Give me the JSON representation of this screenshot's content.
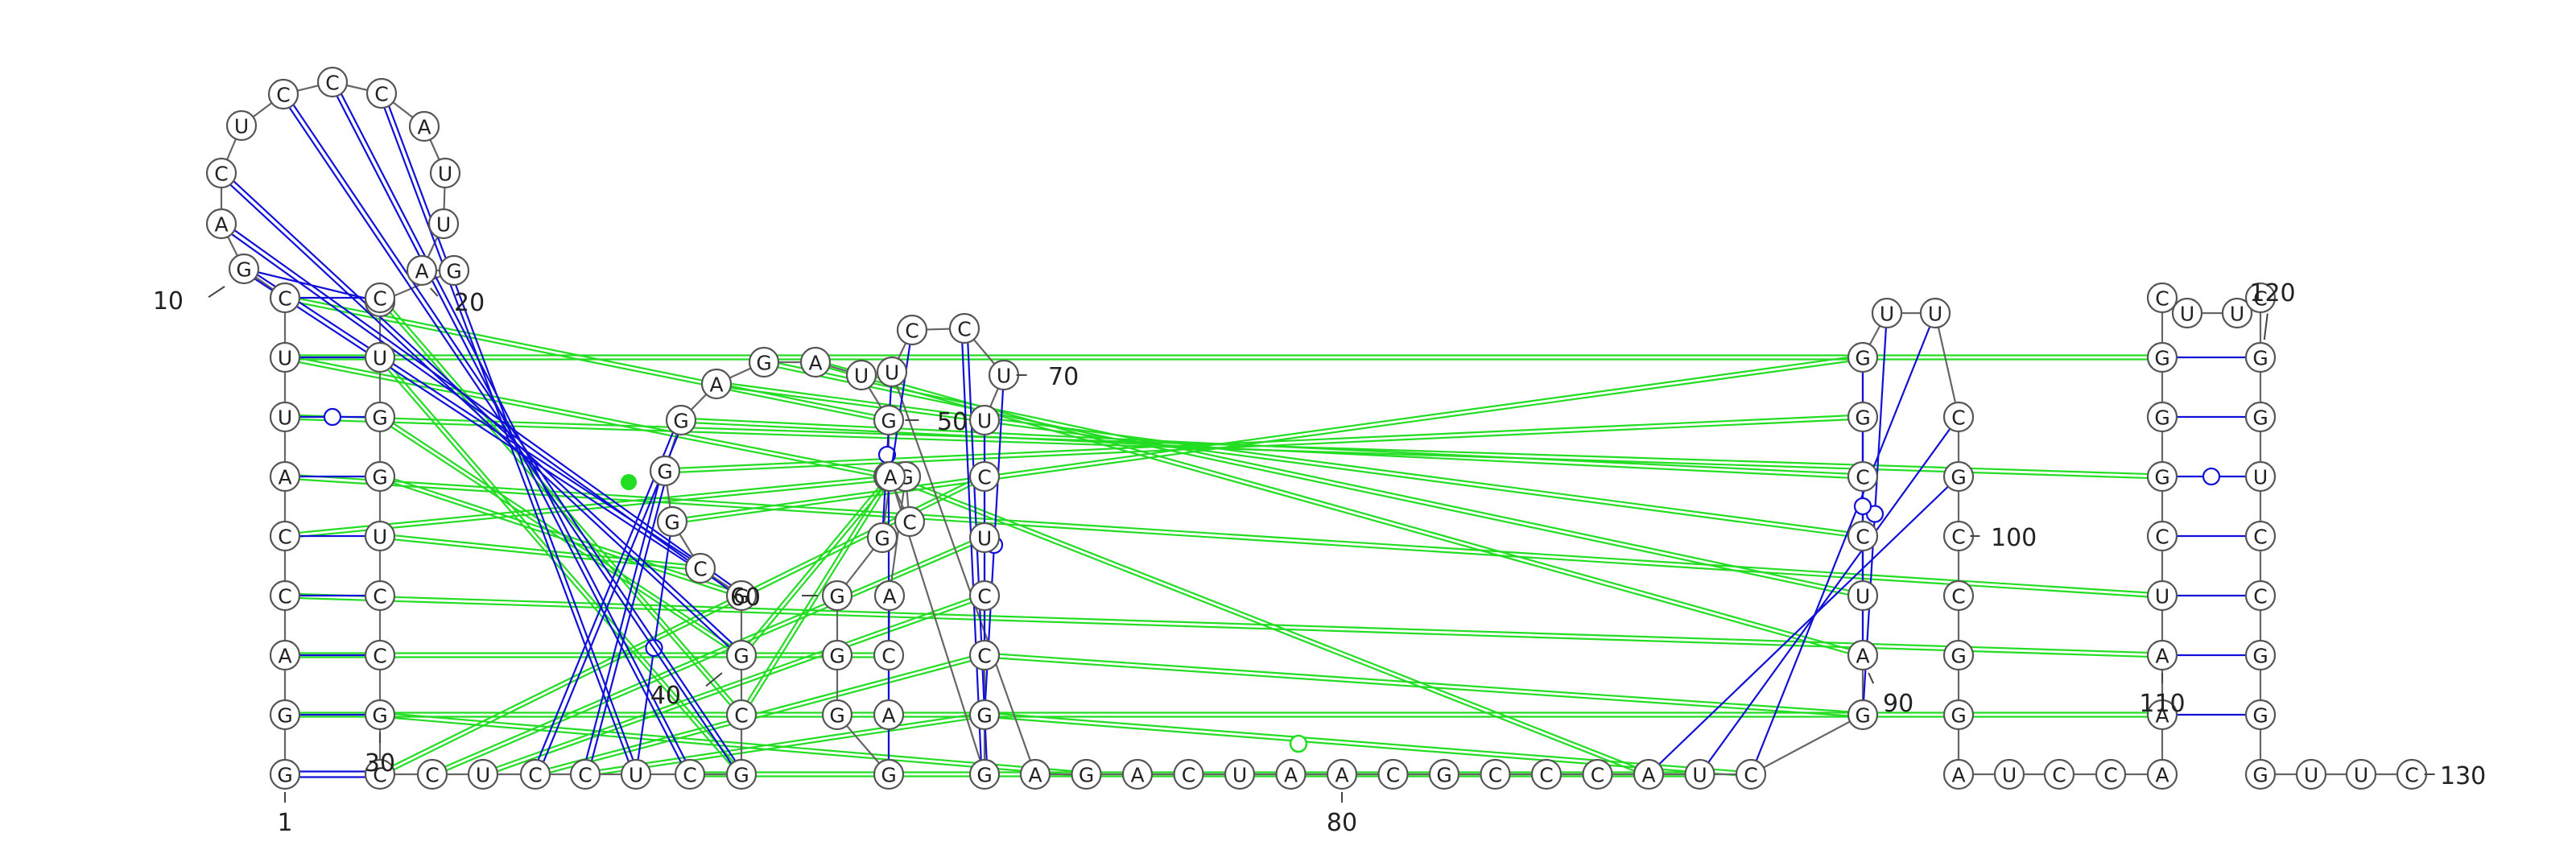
{
  "nucleotides": [
    {
      "n": 1,
      "b": "G"
    },
    {
      "n": 2,
      "b": "G"
    },
    {
      "n": 3,
      "b": "A"
    },
    {
      "n": 4,
      "b": "C"
    },
    {
      "n": 5,
      "b": "C"
    },
    {
      "n": 6,
      "b": "A"
    },
    {
      "n": 7,
      "b": "U"
    },
    {
      "n": 8,
      "b": "U"
    },
    {
      "n": 9,
      "b": "C"
    },
    {
      "n": 10,
      "b": "G"
    },
    {
      "n": 11,
      "b": "A"
    },
    {
      "n": 12,
      "b": "C"
    },
    {
      "n": 13,
      "b": "U"
    },
    {
      "n": 14,
      "b": "C"
    },
    {
      "n": 15,
      "b": "C"
    },
    {
      "n": 16,
      "b": "C"
    },
    {
      "n": 17,
      "b": "A"
    },
    {
      "n": 18,
      "b": "U"
    },
    {
      "n": 19,
      "b": "U"
    },
    {
      "n": 20,
      "b": "A"
    },
    {
      "n": 21,
      "b": "G"
    },
    {
      "n": 22,
      "b": "A"
    },
    {
      "n": 23,
      "b": "C"
    },
    {
      "n": 24,
      "b": "U"
    },
    {
      "n": 25,
      "b": "G"
    },
    {
      "n": 26,
      "b": "G"
    },
    {
      "n": 27,
      "b": "U"
    },
    {
      "n": 28,
      "b": "C"
    },
    {
      "n": 29,
      "b": "C"
    },
    {
      "n": 30,
      "b": "G"
    },
    {
      "n": 31,
      "b": "C"
    },
    {
      "n": 32,
      "b": "C"
    },
    {
      "n": 33,
      "b": "U"
    },
    {
      "n": 34,
      "b": "C"
    },
    {
      "n": 35,
      "b": "C"
    },
    {
      "n": 36,
      "b": "U"
    },
    {
      "n": 37,
      "b": "C"
    },
    {
      "n": 38,
      "b": "G"
    },
    {
      "n": 39,
      "b": "C"
    },
    {
      "n": 40,
      "b": "G"
    },
    {
      "n": 41,
      "b": "G"
    },
    {
      "n": 42,
      "b": "C"
    },
    {
      "n": 43,
      "b": "G"
    },
    {
      "n": 44,
      "b": "G"
    },
    {
      "n": 45,
      "b": "G"
    },
    {
      "n": 46,
      "b": "A"
    },
    {
      "n": 47,
      "b": "G"
    },
    {
      "n": 48,
      "b": "A"
    },
    {
      "n": 49,
      "b": "U"
    },
    {
      "n": 50,
      "b": "G"
    },
    {
      "n": 51,
      "b": "G"
    },
    {
      "n": 52,
      "b": "C"
    },
    {
      "n": 53,
      "b": "G"
    },
    {
      "n": 54,
      "b": "A"
    },
    {
      "n": 55,
      "b": "C"
    },
    {
      "n": 56,
      "b": "A"
    },
    {
      "n": 57,
      "b": "G"
    },
    {
      "n": 58,
      "b": "G"
    },
    {
      "n": 59,
      "b": "G"
    },
    {
      "n": 60,
      "b": "G"
    },
    {
      "n": 61,
      "b": "G"
    },
    {
      "n": 62,
      "b": "A"
    },
    {
      "n": 63,
      "b": "G"
    },
    {
      "n": 64,
      "b": "G"
    },
    {
      "n": 65,
      "b": "C"
    },
    {
      "n": 66,
      "b": "C"
    },
    {
      "n": 67,
      "b": "U"
    },
    {
      "n": 68,
      "b": "C"
    },
    {
      "n": 69,
      "b": "U"
    },
    {
      "n": 70,
      "b": "U"
    },
    {
      "n": 71,
      "b": "C"
    },
    {
      "n": 72,
      "b": "C"
    },
    {
      "n": 73,
      "b": "U"
    },
    {
      "n": 74,
      "b": "A"
    },
    {
      "n": 75,
      "b": "G"
    },
    {
      "n": 76,
      "b": "A"
    },
    {
      "n": 77,
      "b": "C"
    },
    {
      "n": 78,
      "b": "U"
    },
    {
      "n": 79,
      "b": "A"
    },
    {
      "n": 80,
      "b": "A"
    },
    {
      "n": 81,
      "b": "C"
    },
    {
      "n": 82,
      "b": "G"
    },
    {
      "n": 83,
      "b": "C"
    },
    {
      "n": 84,
      "b": "C"
    },
    {
      "n": 85,
      "b": "C"
    },
    {
      "n": 86,
      "b": "A"
    },
    {
      "n": 87,
      "b": "U"
    },
    {
      "n": 88,
      "b": "C"
    },
    {
      "n": 89,
      "b": "G"
    },
    {
      "n": 90,
      "b": "A"
    },
    {
      "n": 91,
      "b": "U"
    },
    {
      "n": 92,
      "b": "C"
    },
    {
      "n": 93,
      "b": "C"
    },
    {
      "n": 94,
      "b": "G"
    },
    {
      "n": 95,
      "b": "G"
    },
    {
      "n": 96,
      "b": "U"
    },
    {
      "n": 97,
      "b": "U"
    },
    {
      "n": 98,
      "b": "C"
    },
    {
      "n": 99,
      "b": "G"
    },
    {
      "n": 100,
      "b": "C"
    },
    {
      "n": 101,
      "b": "C"
    },
    {
      "n": 102,
      "b": "G"
    },
    {
      "n": 103,
      "b": "G"
    },
    {
      "n": 104,
      "b": "A"
    },
    {
      "n": 105,
      "b": "U"
    },
    {
      "n": 106,
      "b": "C"
    },
    {
      "n": 107,
      "b": "C"
    },
    {
      "n": 108,
      "b": "A"
    },
    {
      "n": 109,
      "b": "A"
    },
    {
      "n": 110,
      "b": "A"
    },
    {
      "n": 111,
      "b": "U"
    },
    {
      "n": 112,
      "b": "C"
    },
    {
      "n": 113,
      "b": "G"
    },
    {
      "n": 114,
      "b": "G"
    },
    {
      "n": 115,
      "b": "G"
    },
    {
      "n": 116,
      "b": "C"
    },
    {
      "n": 117,
      "b": "U"
    },
    {
      "n": 118,
      "b": "U"
    },
    {
      "n": 119,
      "b": "C"
    },
    {
      "n": 120,
      "b": "G"
    },
    {
      "n": 121,
      "b": "G"
    },
    {
      "n": 122,
      "b": "U"
    },
    {
      "n": 123,
      "b": "C"
    },
    {
      "n": 124,
      "b": "C"
    },
    {
      "n": 125,
      "b": "G"
    },
    {
      "n": 126,
      "b": "G"
    },
    {
      "n": 127,
      "b": "G"
    },
    {
      "n": 128,
      "b": "U"
    },
    {
      "n": 129,
      "b": "U"
    },
    {
      "n": 130,
      "b": "C"
    }
  ],
  "position_labels": [
    {
      "n": 1,
      "text": "1"
    },
    {
      "n": 10,
      "text": "10"
    },
    {
      "n": 20,
      "text": "20"
    },
    {
      "n": 30,
      "text": "30"
    },
    {
      "n": 40,
      "text": "40"
    },
    {
      "n": 50,
      "text": "50"
    },
    {
      "n": 60,
      "text": "60"
    },
    {
      "n": 70,
      "text": "70"
    },
    {
      "n": 80,
      "text": "80"
    },
    {
      "n": 90,
      "text": "90"
    },
    {
      "n": 100,
      "text": "100"
    },
    {
      "n": 110,
      "text": "110"
    },
    {
      "n": 120,
      "text": "120"
    },
    {
      "n": 130,
      "text": "130"
    }
  ],
  "canonical_pairs": [
    [
      1,
      31
    ],
    [
      2,
      30
    ],
    [
      3,
      29
    ],
    [
      4,
      28
    ],
    [
      5,
      27
    ],
    [
      6,
      26
    ],
    [
      7,
      25
    ],
    [
      8,
      24
    ],
    [
      9,
      23
    ],
    [
      10,
      22
    ],
    [
      34,
      45
    ],
    [
      35,
      44
    ],
    [
      36,
      43
    ],
    [
      51,
      57
    ],
    [
      61,
      73
    ],
    [
      62,
      72
    ],
    [
      63,
      71
    ],
    [
      64,
      70
    ],
    [
      65,
      69
    ],
    [
      86,
      99
    ],
    [
      87,
      98
    ],
    [
      88,
      97
    ],
    [
      89,
      96
    ],
    [
      90,
      95
    ],
    [
      91,
      94
    ],
    [
      109,
      126
    ],
    [
      110,
      125
    ],
    [
      111,
      124
    ],
    [
      112,
      123
    ],
    [
      113,
      122
    ],
    [
      114,
      121
    ],
    [
      115,
      120
    ]
  ],
  "tertiary_pairs": [
    [
      10,
      42
    ],
    [
      11,
      41
    ],
    [
      12,
      40
    ],
    [
      14,
      38
    ],
    [
      15,
      37
    ],
    [
      16,
      36
    ]
  ],
  "green_interactions": [
    [
      24,
      38
    ],
    [
      23,
      39
    ],
    [
      25,
      40
    ],
    [
      26,
      41
    ],
    [
      27,
      42
    ],
    [
      9,
      50
    ],
    [
      8,
      51
    ],
    [
      5,
      53
    ],
    [
      3,
      55
    ],
    [
      8,
      115
    ],
    [
      7,
      113
    ],
    [
      6,
      111
    ],
    [
      4,
      110
    ],
    [
      2,
      109
    ],
    [
      39,
      62
    ],
    [
      40,
      62
    ],
    [
      37,
      63
    ],
    [
      35,
      64
    ],
    [
      34,
      65
    ],
    [
      33,
      66
    ],
    [
      32,
      67
    ],
    [
      31,
      68
    ],
    [
      30,
      75
    ],
    [
      48,
      90
    ],
    [
      47,
      91
    ],
    [
      46,
      92
    ],
    [
      45,
      93
    ],
    [
      44,
      94
    ],
    [
      43,
      95
    ],
    [
      62,
      86
    ],
    [
      63,
      87
    ],
    [
      64,
      88
    ],
    [
      65,
      89
    ]
  ],
  "colors": {
    "canonical": "#1010d8",
    "tertiary": "#1010d8",
    "interaction": "#22dd22",
    "outline": "#555555"
  }
}
